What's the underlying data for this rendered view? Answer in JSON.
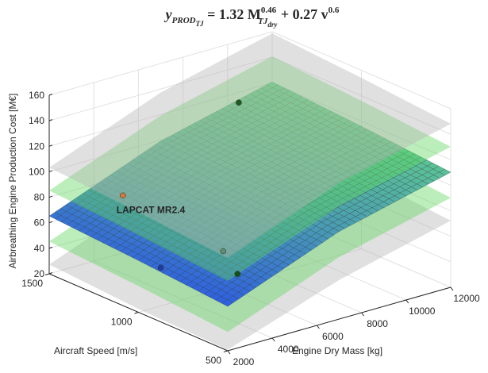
{
  "chart_data": {
    "type": "surface3d",
    "title": [
      "y",
      "PROD",
      "TJ",
      " = 1.32 M",
      "0.46",
      "TJ",
      "dry",
      " + 0.27 v",
      "0.6"
    ],
    "xlabel": "Engine Dry Mass [kg]",
    "ylabel": "Aircraft Speed [m/s]",
    "zlabel": "Airbreathing Engine Production Cost [M€]",
    "xlim": [
      2000,
      12000
    ],
    "xticks": [
      2000,
      4000,
      6000,
      8000,
      10000,
      12000
    ],
    "ylim": [
      500,
      1500
    ],
    "yticks": [
      500,
      1000,
      1500
    ],
    "zlim": [
      20,
      160
    ],
    "zticks": [
      20,
      40,
      60,
      80,
      100,
      120,
      140,
      160
    ],
    "grid": true,
    "surface_x": [
      2000,
      7000,
      12000
    ],
    "surface_y": [
      500,
      1000,
      1500
    ],
    "surfaces": [
      {
        "color": "#b4b4b4",
        "z": [
          [
            20.8,
            50.7,
            72.2
          ],
          [
            22.6,
            56.5,
            78
          ],
          [
            27.3,
            61.2,
            82.7
          ]
        ]
      },
      {
        "color": "#5fd65f",
        "z": [
          [
            34.8,
            68.7,
            90.2
          ],
          [
            40.6,
            74.5,
            96
          ],
          [
            45.3,
            79.2,
            100.7
          ]
        ]
      },
      {
        "colormap": [
          "#2f5fe0",
          "#62d38a"
        ],
        "mesh": true,
        "z": [
          [
            54.8,
            88.7,
            110.2
          ],
          [
            60.6,
            94.5,
            116
          ],
          [
            65.3,
            99.2,
            120.7
          ]
        ]
      },
      {
        "color": "#5fd65f",
        "z": [
          [
            74.8,
            108.7,
            130.2
          ],
          [
            80.6,
            114.5,
            136
          ],
          [
            85.3,
            119.2,
            140.7
          ]
        ]
      },
      {
        "color": "#b4b4b4",
        "z": [
          [
            92.8,
            126.7,
            148.2
          ],
          [
            98.6,
            132.5,
            154
          ],
          [
            103.3,
            137.2,
            158.7
          ]
        ]
      }
    ],
    "points": [
      {
        "x": 8500,
        "y": 1250,
        "z": 137,
        "color": "#1f5a1f"
      },
      {
        "x": 5000,
        "y": 820,
        "z": 46,
        "color": "#145214"
      },
      {
        "x": 5000,
        "y": 900,
        "z": 59,
        "color": "#5f8f6f"
      },
      {
        "x": 3000,
        "y": 1000,
        "z": 50,
        "color": "#1f3fa0"
      },
      {
        "x": 2500,
        "y": 1150,
        "z": 100,
        "color": "#d2793a"
      }
    ],
    "annotation": {
      "text": "LAPCAT MR2.4",
      "color": "#e02020"
    }
  }
}
